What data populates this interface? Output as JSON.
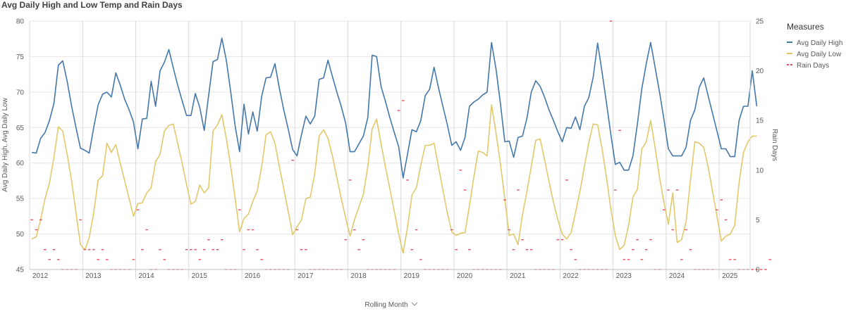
{
  "chart_data": {
    "type": "line",
    "title": "Avg Daily High and Low Temp and Rain Days",
    "xlabel": "Rolling Month",
    "ylabel_left": "Avg Daily High, Avg Daily Low",
    "ylabel_right": "Rain Days",
    "ylim_left": [
      45,
      80
    ],
    "ylim_right": [
      0,
      25
    ],
    "yticks_left": [
      45,
      50,
      55,
      60,
      65,
      70,
      75,
      80
    ],
    "yticks_right": [
      0,
      5,
      10,
      15,
      20,
      25
    ],
    "x_start": "2012-01",
    "x_end": "2025-07",
    "x_tick_labels": [
      "2012",
      "2013",
      "2014",
      "2015",
      "2016",
      "2017",
      "2018",
      "2019",
      "2020",
      "2021",
      "2022",
      "2023",
      "2024",
      "2025"
    ],
    "grid": true,
    "legend_title": "Measures",
    "legend_position": "top-right",
    "series": [
      {
        "name": "Avg Daily High",
        "axis": "left",
        "color": "#4477aa",
        "values": [
          61.5,
          61.4,
          63.5,
          64.3,
          66.0,
          68.4,
          73.8,
          74.4,
          71.5,
          68.0,
          65.0,
          62.1,
          61.8,
          61.4,
          65.0,
          68.2,
          69.7,
          70.0,
          69.3,
          72.7,
          71.0,
          69.0,
          67.5,
          65.8,
          62.0,
          66.2,
          66.3,
          71.5,
          68.0,
          73.0,
          74.2,
          76.0,
          73.4,
          71.0,
          68.8,
          66.7,
          66.7,
          69.8,
          67.8,
          64.6,
          69.5,
          74.3,
          74.6,
          77.6,
          74.5,
          70.0,
          65.2,
          61.6,
          68.3,
          64.1,
          67.2,
          64.5,
          69.4,
          72.0,
          72.1,
          74.0,
          70.5,
          67.5,
          64.8,
          61.9,
          61.0,
          64.0,
          66.6,
          65.5,
          66.6,
          71.8,
          72.0,
          74.5,
          72.2,
          70.0,
          68.0,
          65.6,
          61.6,
          61.6,
          62.7,
          63.8,
          66.4,
          75.2,
          75.0,
          70.8,
          68.7,
          66.4,
          64.3,
          62.3,
          57.9,
          61.3,
          64.7,
          64.4,
          66.0,
          69.5,
          70.4,
          73.5,
          70.6,
          68.0,
          65.4,
          62.5,
          63.0,
          61.8,
          63.6,
          68.0,
          68.6,
          69.0,
          69.6,
          70.0,
          77.0,
          73.3,
          68.5,
          63.0,
          63.1,
          60.8,
          63.6,
          63.8,
          66.3,
          70.0,
          71.6,
          70.8,
          69.3,
          67.5,
          66.0,
          64.4,
          63.0,
          65.0,
          64.9,
          66.5,
          64.7,
          68.0,
          69.2,
          72.1,
          76.9,
          72.8,
          68.5,
          64.0,
          59.8,
          60.1,
          59.0,
          59.0,
          61.0,
          65.5,
          70.5,
          74.0,
          77.0,
          73.5,
          70.0,
          66.2,
          62.0,
          61.0,
          61.0,
          61.0,
          62.2,
          66.0,
          67.5,
          70.7,
          72.0,
          69.5,
          67.0,
          64.5,
          62.0,
          62.0,
          60.9,
          60.9,
          66.0,
          68.0,
          68.0,
          73.0,
          68.0
        ]
      },
      {
        "name": "Avg Daily Low",
        "axis": "left",
        "color": "#e2c86a",
        "values": [
          49.3,
          49.6,
          52.0,
          55.0,
          57.2,
          60.8,
          65.1,
          64.5,
          61.2,
          57.5,
          53.0,
          48.5,
          47.8,
          49.5,
          53.0,
          57.6,
          58.2,
          62.8,
          61.5,
          62.6,
          60.0,
          57.5,
          55.0,
          52.5,
          54.3,
          54.4,
          55.8,
          56.5,
          60.2,
          61.2,
          64.5,
          65.3,
          65.5,
          62.8,
          60.0,
          57.0,
          54.2,
          54.6,
          56.9,
          55.8,
          56.5,
          64.5,
          65.4,
          66.8,
          63.5,
          59.5,
          55.0,
          50.3,
          52.2,
          52.8,
          54.6,
          56.1,
          59.5,
          64.0,
          64.4,
          62.8,
          59.5,
          56.4,
          53.2,
          49.9,
          51.0,
          52.0,
          55.0,
          55.2,
          58.5,
          63.8,
          64.7,
          63.5,
          61.0,
          58.0,
          55.0,
          52.3,
          49.7,
          52.0,
          53.8,
          55.6,
          59.5,
          64.8,
          66.2,
          62.7,
          59.5,
          56.4,
          53.2,
          50.0,
          47.3,
          51.0,
          55.5,
          56.5,
          59.7,
          62.5,
          62.5,
          62.8,
          59.5,
          56.2,
          53.0,
          50.3,
          49.8,
          50.1,
          50.2,
          54.0,
          58.0,
          61.7,
          61.5,
          61.0,
          68.2,
          64.3,
          60.0,
          55.0,
          49.8,
          50.0,
          48.5,
          52.7,
          56.0,
          59.5,
          63.2,
          63.4,
          60.5,
          57.4,
          54.5,
          52.0,
          50.0,
          49.3,
          50.2,
          53.0,
          56.0,
          59.5,
          62.8,
          65.5,
          65.4,
          62.0,
          58.0,
          53.5,
          49.8,
          47.8,
          48.4,
          51.2,
          55.2,
          56.3,
          62.0,
          63.0,
          66.0,
          62.2,
          58.0,
          54.5,
          51.4,
          55.8,
          48.8,
          49.2,
          51.7,
          57.6,
          63.0,
          62.8,
          62.2,
          59.5,
          56.0,
          52.5,
          49.0,
          49.7,
          50.0,
          51.2,
          57.2,
          61.5,
          63.0,
          63.8,
          63.8
        ]
      },
      {
        "name": "Rain Days",
        "axis": "right",
        "color": "#e05060",
        "values": [
          5,
          4,
          5,
          2,
          1,
          2,
          1,
          0,
          0,
          0,
          0,
          5,
          2,
          2,
          2,
          1,
          2,
          1,
          0,
          0,
          0,
          0,
          0,
          1,
          6,
          2,
          4,
          0,
          0,
          2,
          1,
          0,
          0,
          0,
          0,
          2,
          2,
          2,
          1,
          2,
          3,
          2,
          2,
          3,
          0,
          0,
          0,
          6,
          2,
          4,
          4,
          2,
          1,
          0,
          0,
          0,
          0,
          0,
          0,
          11,
          4,
          2,
          2,
          0,
          0,
          0,
          0,
          0,
          0,
          0,
          0,
          3,
          9,
          4,
          2,
          3,
          0,
          0,
          0,
          0,
          0,
          0,
          0,
          16,
          17,
          9,
          2,
          4,
          1,
          0,
          0,
          0,
          0,
          0,
          0,
          4,
          2,
          10,
          8,
          2,
          0,
          0,
          0,
          0,
          0,
          0,
          0,
          7,
          4,
          2,
          8,
          3,
          2,
          2,
          0,
          0,
          0,
          0,
          0,
          3,
          3,
          9,
          2,
          1,
          0,
          0,
          0,
          0,
          0,
          0,
          0,
          25,
          8,
          14,
          1,
          1,
          2,
          3,
          1,
          2,
          3,
          0,
          0,
          6,
          8,
          4,
          8,
          1,
          4,
          2,
          0,
          0,
          0,
          0,
          0,
          6,
          7,
          5,
          1,
          1,
          0,
          0,
          0,
          0,
          0,
          0,
          0,
          1
        ]
      }
    ]
  }
}
